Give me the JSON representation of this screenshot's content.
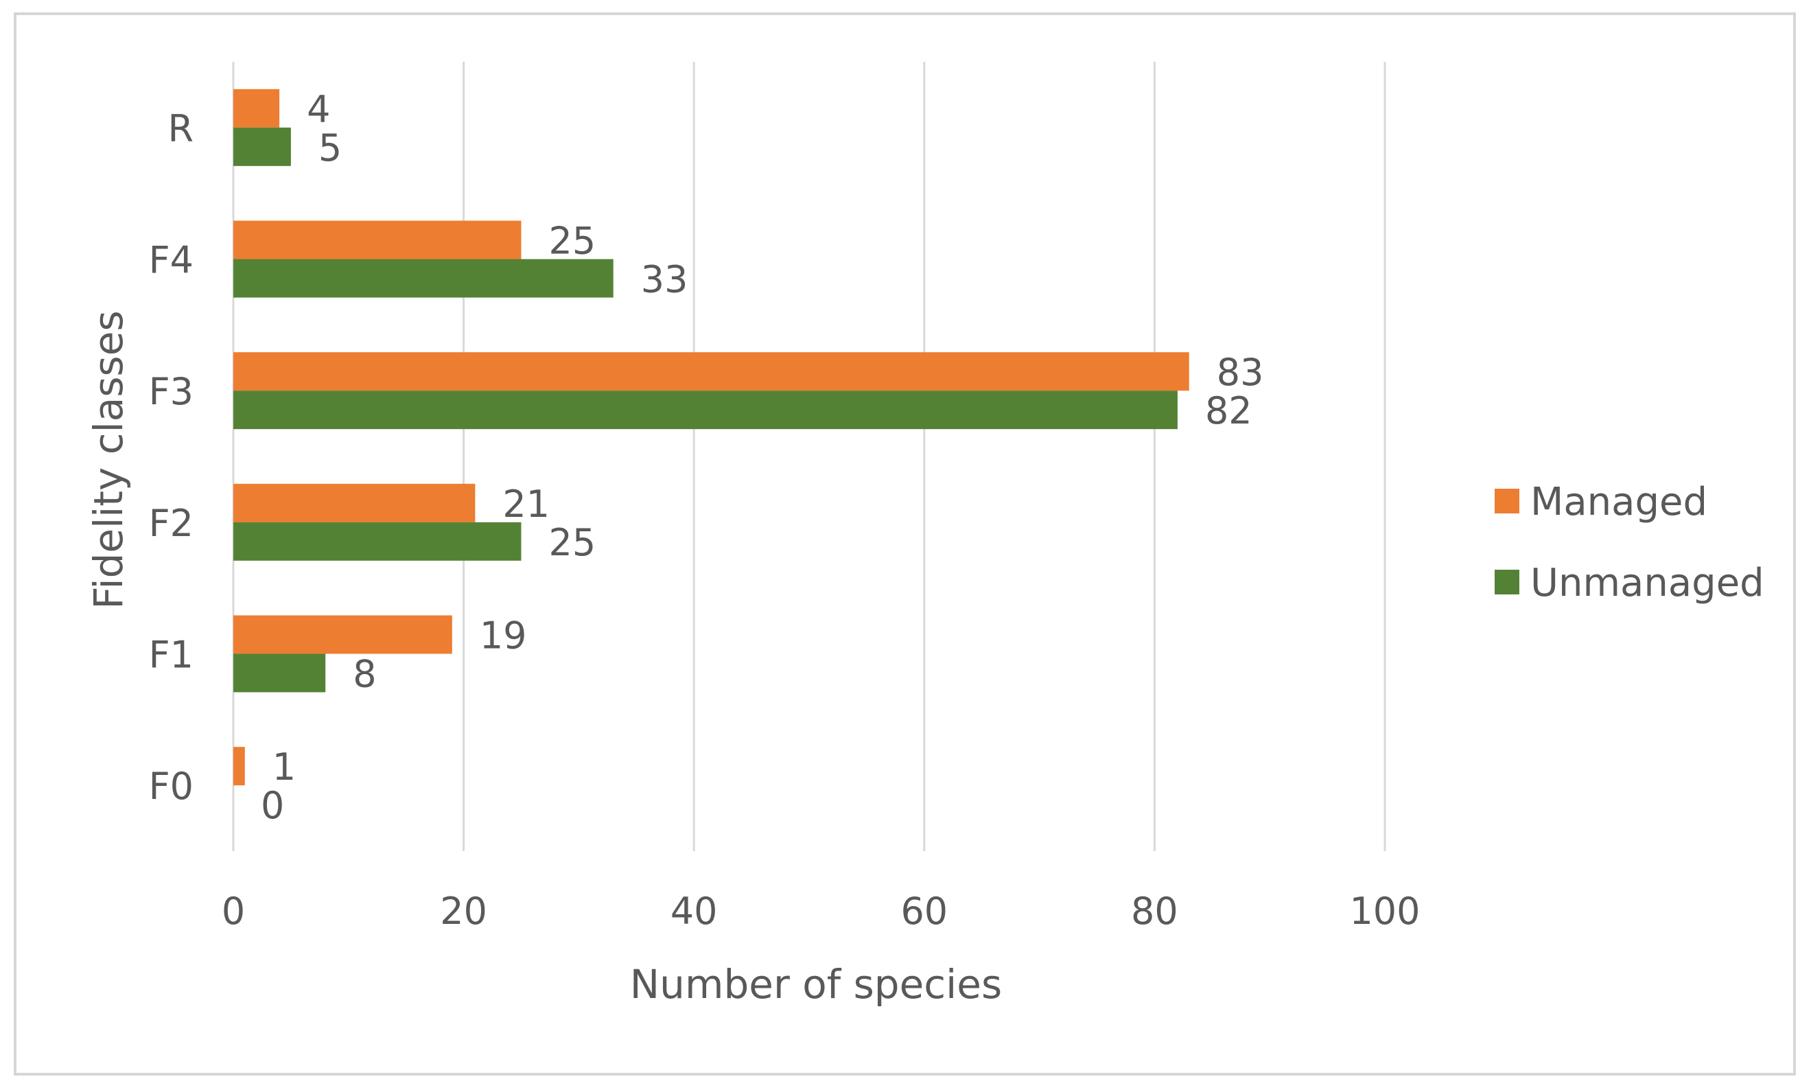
{
  "chart_data": {
    "type": "bar",
    "orientation": "horizontal",
    "title": "",
    "xlabel": "Number of species",
    "ylabel": "Fidelity classes",
    "categories": [
      "R",
      "F4",
      "F3",
      "F2",
      "F1",
      "F0"
    ],
    "series": [
      {
        "name": "Managed",
        "color": "#ed7d31",
        "values": [
          4,
          25,
          83,
          21,
          19,
          1
        ]
      },
      {
        "name": "Unmanaged",
        "color": "#548235",
        "values": [
          5,
          33,
          82,
          25,
          8,
          0
        ]
      }
    ],
    "xlim": [
      0,
      100
    ],
    "xticks": [
      0,
      20,
      40,
      60,
      80,
      100
    ],
    "grid": "vertical",
    "legend_position": "right"
  }
}
